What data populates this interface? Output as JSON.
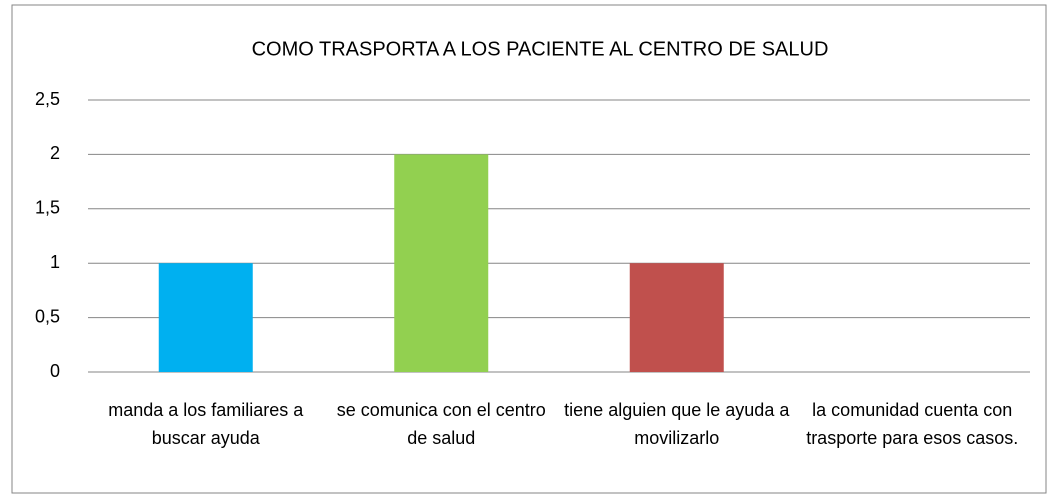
{
  "chart_data": {
    "type": "bar",
    "title": "COMO TRASPORTA A LOS PACIENTE AL CENTRO DE SALUD",
    "categories": [
      "manda a los familiares a buscar ayuda",
      "se comunica con el centro de salud",
      "tiene alguien que le ayuda a movilizarlo",
      "la comunidad cuenta con trasporte para esos casos."
    ],
    "values": [
      1,
      2,
      1,
      0
    ],
    "colors": [
      "#00b0f0",
      "#92d050",
      "#c0504d",
      "#8064a2"
    ],
    "ylim": [
      0,
      2.5
    ],
    "yticks": [
      0,
      {
        "value": 0.5,
        "label": "0,5"
      },
      1,
      {
        "value": 1.5,
        "label": "1,5"
      },
      2,
      {
        "value": 2.5,
        "label": "2,5"
      }
    ],
    "grid": true
  }
}
